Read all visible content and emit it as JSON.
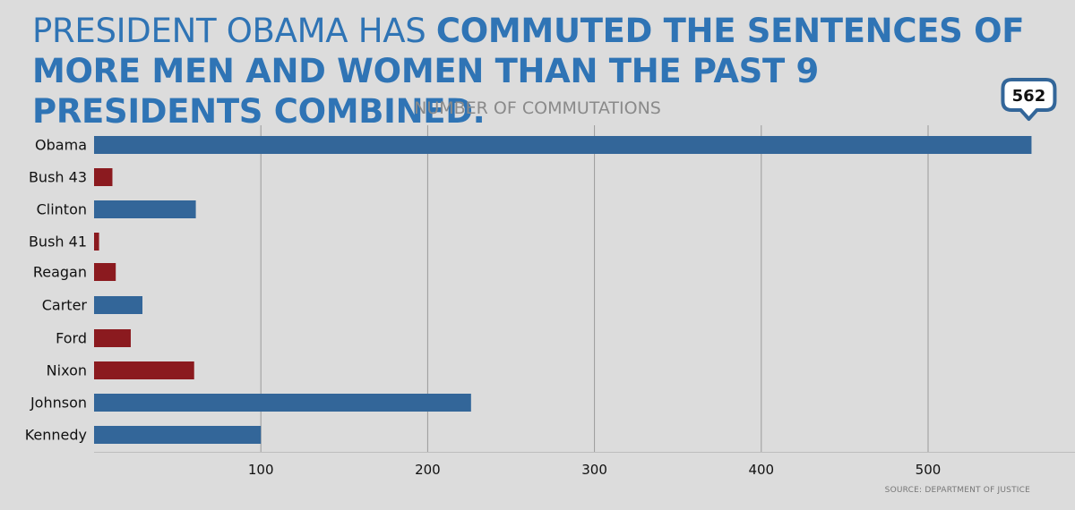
{
  "headline": {
    "part1": "PRESIDENT OBAMA HAS ",
    "part2": "COMMUTED THE SENTENCES OF MORE MEN AND WOMEN THAN THE PAST 9 PRESIDENTS COMBINED."
  },
  "source": "SOURCE: DEPARTMENT OF JUSTICE",
  "colors": {
    "blue": "#336699",
    "red": "#8b1a1f",
    "headline": "#2f74b5",
    "grid": "#9a9a9a"
  },
  "chart_data": {
    "type": "bar",
    "orientation": "horizontal",
    "title": "NUMBER OF COMMUTATIONS",
    "categories": [
      "Obama",
      "Bush 43",
      "Clinton",
      "Bush 41",
      "Reagan",
      "Carter",
      "Ford",
      "Nixon",
      "Johnson",
      "Kennedy"
    ],
    "values": [
      562,
      11,
      61,
      3,
      13,
      29,
      22,
      60,
      226,
      100
    ],
    "party": [
      "D",
      "R",
      "D",
      "R",
      "R",
      "D",
      "R",
      "R",
      "D",
      "D"
    ],
    "xlim": [
      0,
      600
    ],
    "xticks": [
      100,
      200,
      300,
      400,
      500
    ],
    "grid": true,
    "callout": {
      "category": "Obama",
      "label": "562"
    }
  }
}
